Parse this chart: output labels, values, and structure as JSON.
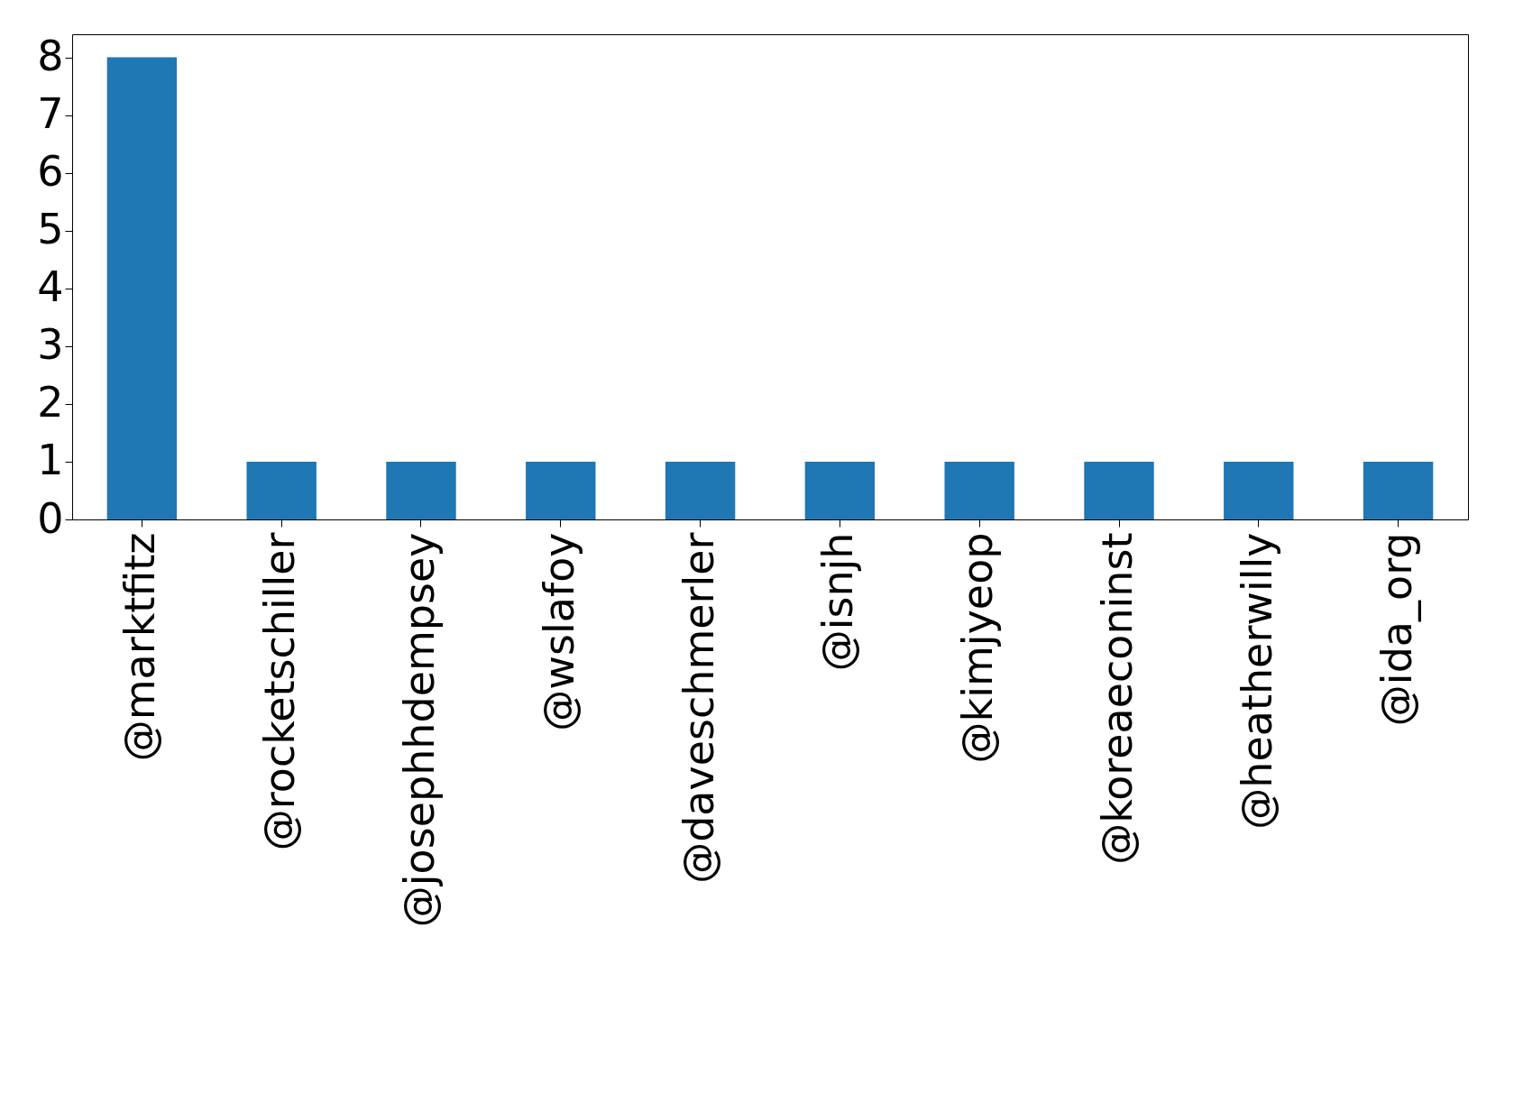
{
  "chart_data": {
    "type": "bar",
    "categories": [
      "@marktfitz",
      "@rocketschiller",
      "@josephhdempsey",
      "@wslafoy",
      "@daveschmerler",
      "@isnjh",
      "@kimjyeop",
      "@koreaeconinst",
      "@heatherwilly",
      "@ida_org"
    ],
    "values": [
      8,
      1,
      1,
      1,
      1,
      1,
      1,
      1,
      1,
      1
    ],
    "color": "#1f77b4",
    "ylim": [
      0,
      8.4
    ],
    "yticks": [
      0,
      1,
      2,
      3,
      4,
      5,
      6,
      7,
      8
    ],
    "grid": false
  }
}
